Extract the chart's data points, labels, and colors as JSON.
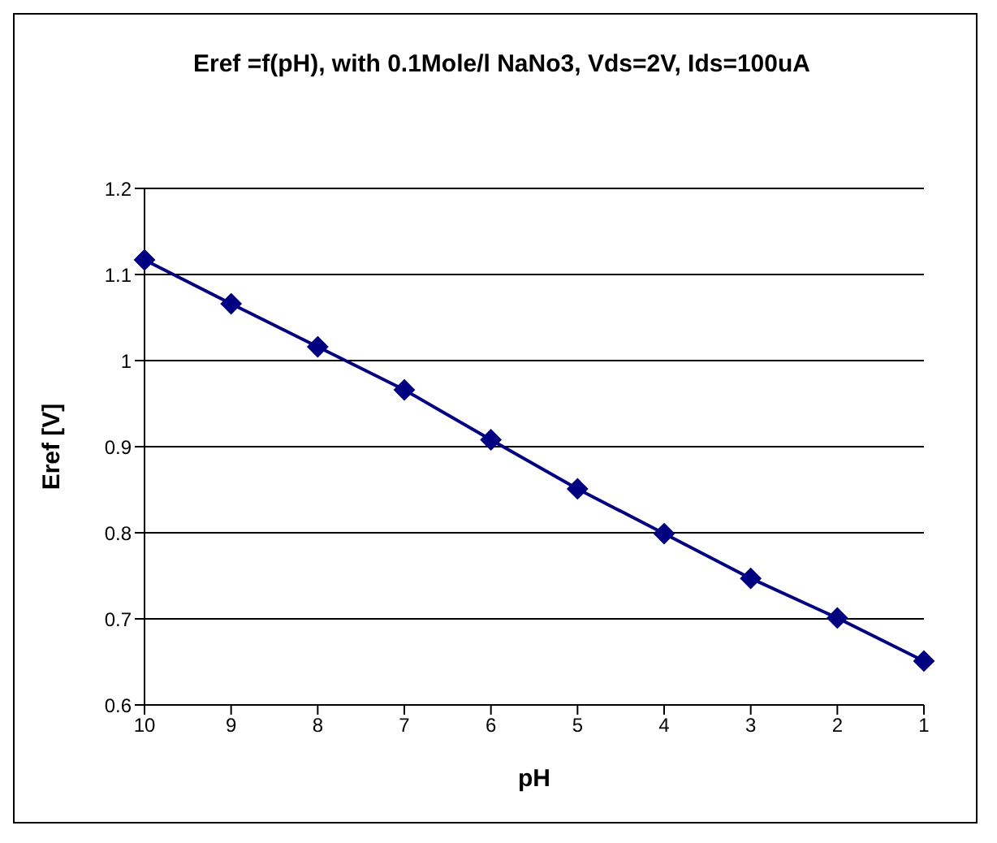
{
  "chart_data": {
    "type": "line",
    "title": "Eref =f(pH), with 0.1Mole/l NaNo3, Vds=2V, Ids=100uA",
    "xlabel": "pH",
    "ylabel": "Eref [V]",
    "categories": [
      "10",
      "9",
      "8",
      "7",
      "6",
      "5",
      "4",
      "3",
      "2",
      "1"
    ],
    "series": [
      {
        "color": "#000080",
        "values": [
          1.117,
          1.066,
          1.016,
          0.966,
          0.908,
          0.851,
          0.799,
          0.747,
          0.701,
          0.651
        ]
      }
    ],
    "ylim": [
      0.6,
      1.2
    ],
    "yticks": [
      0.6,
      0.7,
      0.8,
      0.9,
      1,
      1.1,
      1.2
    ],
    "grid": "y",
    "legend": false,
    "marker": "diamond",
    "line_style": "solid"
  }
}
